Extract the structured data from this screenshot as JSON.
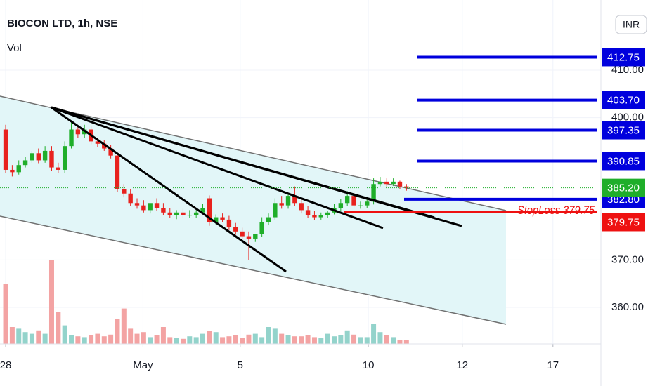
{
  "chart_data": {
    "type": "candlestick",
    "title": "BIOCON LTD, 1h, NSE",
    "indicator": "Vol",
    "currency": "INR",
    "grid": true,
    "up_color": "#1fae2a",
    "down_color": "#e8221e",
    "volume_up_color": "#93d3cb",
    "volume_down_color": "#f3a3a3",
    "xlim": [
      -0.86,
      90.06
    ],
    "xticks": [
      {
        "value": 0,
        "label": "28"
      },
      {
        "value": 20.9,
        "label": "May"
      },
      {
        "value": 35.7,
        "label": "5"
      },
      {
        "value": 55.2,
        "label": "10"
      },
      {
        "value": 69.5,
        "label": "12"
      },
      {
        "value": 83.3,
        "label": "17"
      }
    ],
    "ylim": [
      352.3,
      424.8
    ],
    "yticks": [
      {
        "value": 410,
        "label": "410.00"
      },
      {
        "value": 400,
        "label": "400.00"
      },
      {
        "value": 370,
        "label": "370.00"
      },
      {
        "value": 360,
        "label": "360.00"
      }
    ],
    "open": [
      397.5,
      389,
      388.5,
      390,
      391,
      392.5,
      391,
      393,
      389.5,
      389,
      394,
      397.5,
      396.5,
      397.5,
      395,
      394.5,
      393.5,
      392,
      385,
      384,
      382,
      381.5,
      380.5,
      382,
      381,
      380,
      379.5,
      380,
      379.5,
      379.5,
      380,
      383,
      378,
      379,
      378.5,
      377,
      376,
      375,
      374.5,
      375.5,
      378,
      379,
      382,
      381.5,
      383.5,
      382,
      380.5,
      379.5,
      379,
      379.5,
      380,
      381,
      382,
      383.5,
      381.5,
      381.5,
      382.3,
      386,
      386.5,
      386,
      386.5,
      385.5
    ],
    "high": [
      398.5,
      390,
      391,
      391.8,
      393,
      393.5,
      394,
      394,
      390.5,
      395,
      399,
      398.2,
      398.5,
      398.2,
      395.8,
      395.2,
      394.2,
      392.6,
      386,
      385,
      383,
      382.6,
      381.5,
      383,
      382,
      381,
      380.5,
      380.8,
      380.5,
      380.5,
      381.8,
      383.6,
      379.6,
      379.8,
      379.3,
      377.8,
      376.8,
      376,
      375.4,
      379,
      379.8,
      383,
      383.5,
      384,
      385.5,
      383,
      381.3,
      380.3,
      380,
      380.3,
      381.8,
      382.8,
      384.5,
      384.5,
      382.3,
      382.8,
      387.2,
      387.5,
      387.2,
      387.2,
      386.7,
      386
    ],
    "low": [
      388.3,
      387.6,
      388,
      389.5,
      390.5,
      390.4,
      390.5,
      388.8,
      388.4,
      388.3,
      393.5,
      395.8,
      395.8,
      394.4,
      393.8,
      393,
      391.4,
      384.4,
      383.2,
      381.3,
      380.8,
      380,
      379.8,
      380.3,
      379.4,
      378.8,
      378.6,
      378.8,
      378.8,
      378.8,
      379.6,
      377.2,
      377.5,
      378,
      376.3,
      375.3,
      374.3,
      370,
      373.8,
      374.8,
      377.3,
      378.5,
      380.8,
      380.8,
      381.4,
      379.8,
      378.8,
      378.4,
      378.5,
      378.8,
      379.6,
      380.4,
      381.4,
      380.8,
      380.8,
      381,
      381.7,
      385.5,
      385.4,
      385.6,
      385,
      384.6
    ],
    "close": [
      389,
      388.5,
      390,
      391,
      392.5,
      391,
      393,
      389.5,
      389,
      394,
      397.5,
      396.5,
      397.5,
      395,
      394.5,
      393.5,
      392,
      385,
      384,
      382,
      381.5,
      380.5,
      382,
      381,
      380,
      379.5,
      380,
      379.5,
      379.5,
      380,
      381,
      378,
      379,
      378.5,
      377,
      376,
      375,
      374.5,
      375.5,
      378,
      379,
      382,
      381.5,
      383.5,
      382,
      380.5,
      379.5,
      379,
      379.5,
      380,
      381,
      382,
      383.5,
      381.5,
      381.5,
      382.3,
      386,
      386.5,
      386,
      386.5,
      385.5,
      385.2
    ],
    "volume": [
      71,
      20,
      18,
      14,
      12,
      16,
      12,
      100,
      38,
      22,
      10,
      9,
      8,
      10,
      12,
      9,
      11,
      30,
      42,
      18,
      12,
      14,
      8,
      10,
      20,
      8,
      7,
      6,
      9,
      8,
      12,
      15,
      14,
      8,
      9,
      10,
      7,
      11,
      12,
      8,
      20,
      18,
      12,
      10,
      9,
      9,
      10,
      8,
      7,
      12,
      9,
      10,
      16,
      11,
      8,
      8,
      24,
      14,
      10,
      8,
      5,
      5
    ],
    "vlim": [
      0,
      100
    ],
    "levels": {
      "values": [
        412.75,
        403.7,
        397.35,
        390.85,
        382.8
      ],
      "value_labels": [
        "412.75",
        "403.70",
        "397.35",
        "390.85",
        "382.80"
      ],
      "color": "#0000dd"
    },
    "last_price": {
      "value": 385.2,
      "label": "385.20",
      "color": "#1fae2a"
    },
    "stop_loss": {
      "value": 379.75,
      "label": "379.75",
      "text": "StopLoss 379.75",
      "color": "#ee1111"
    }
  }
}
